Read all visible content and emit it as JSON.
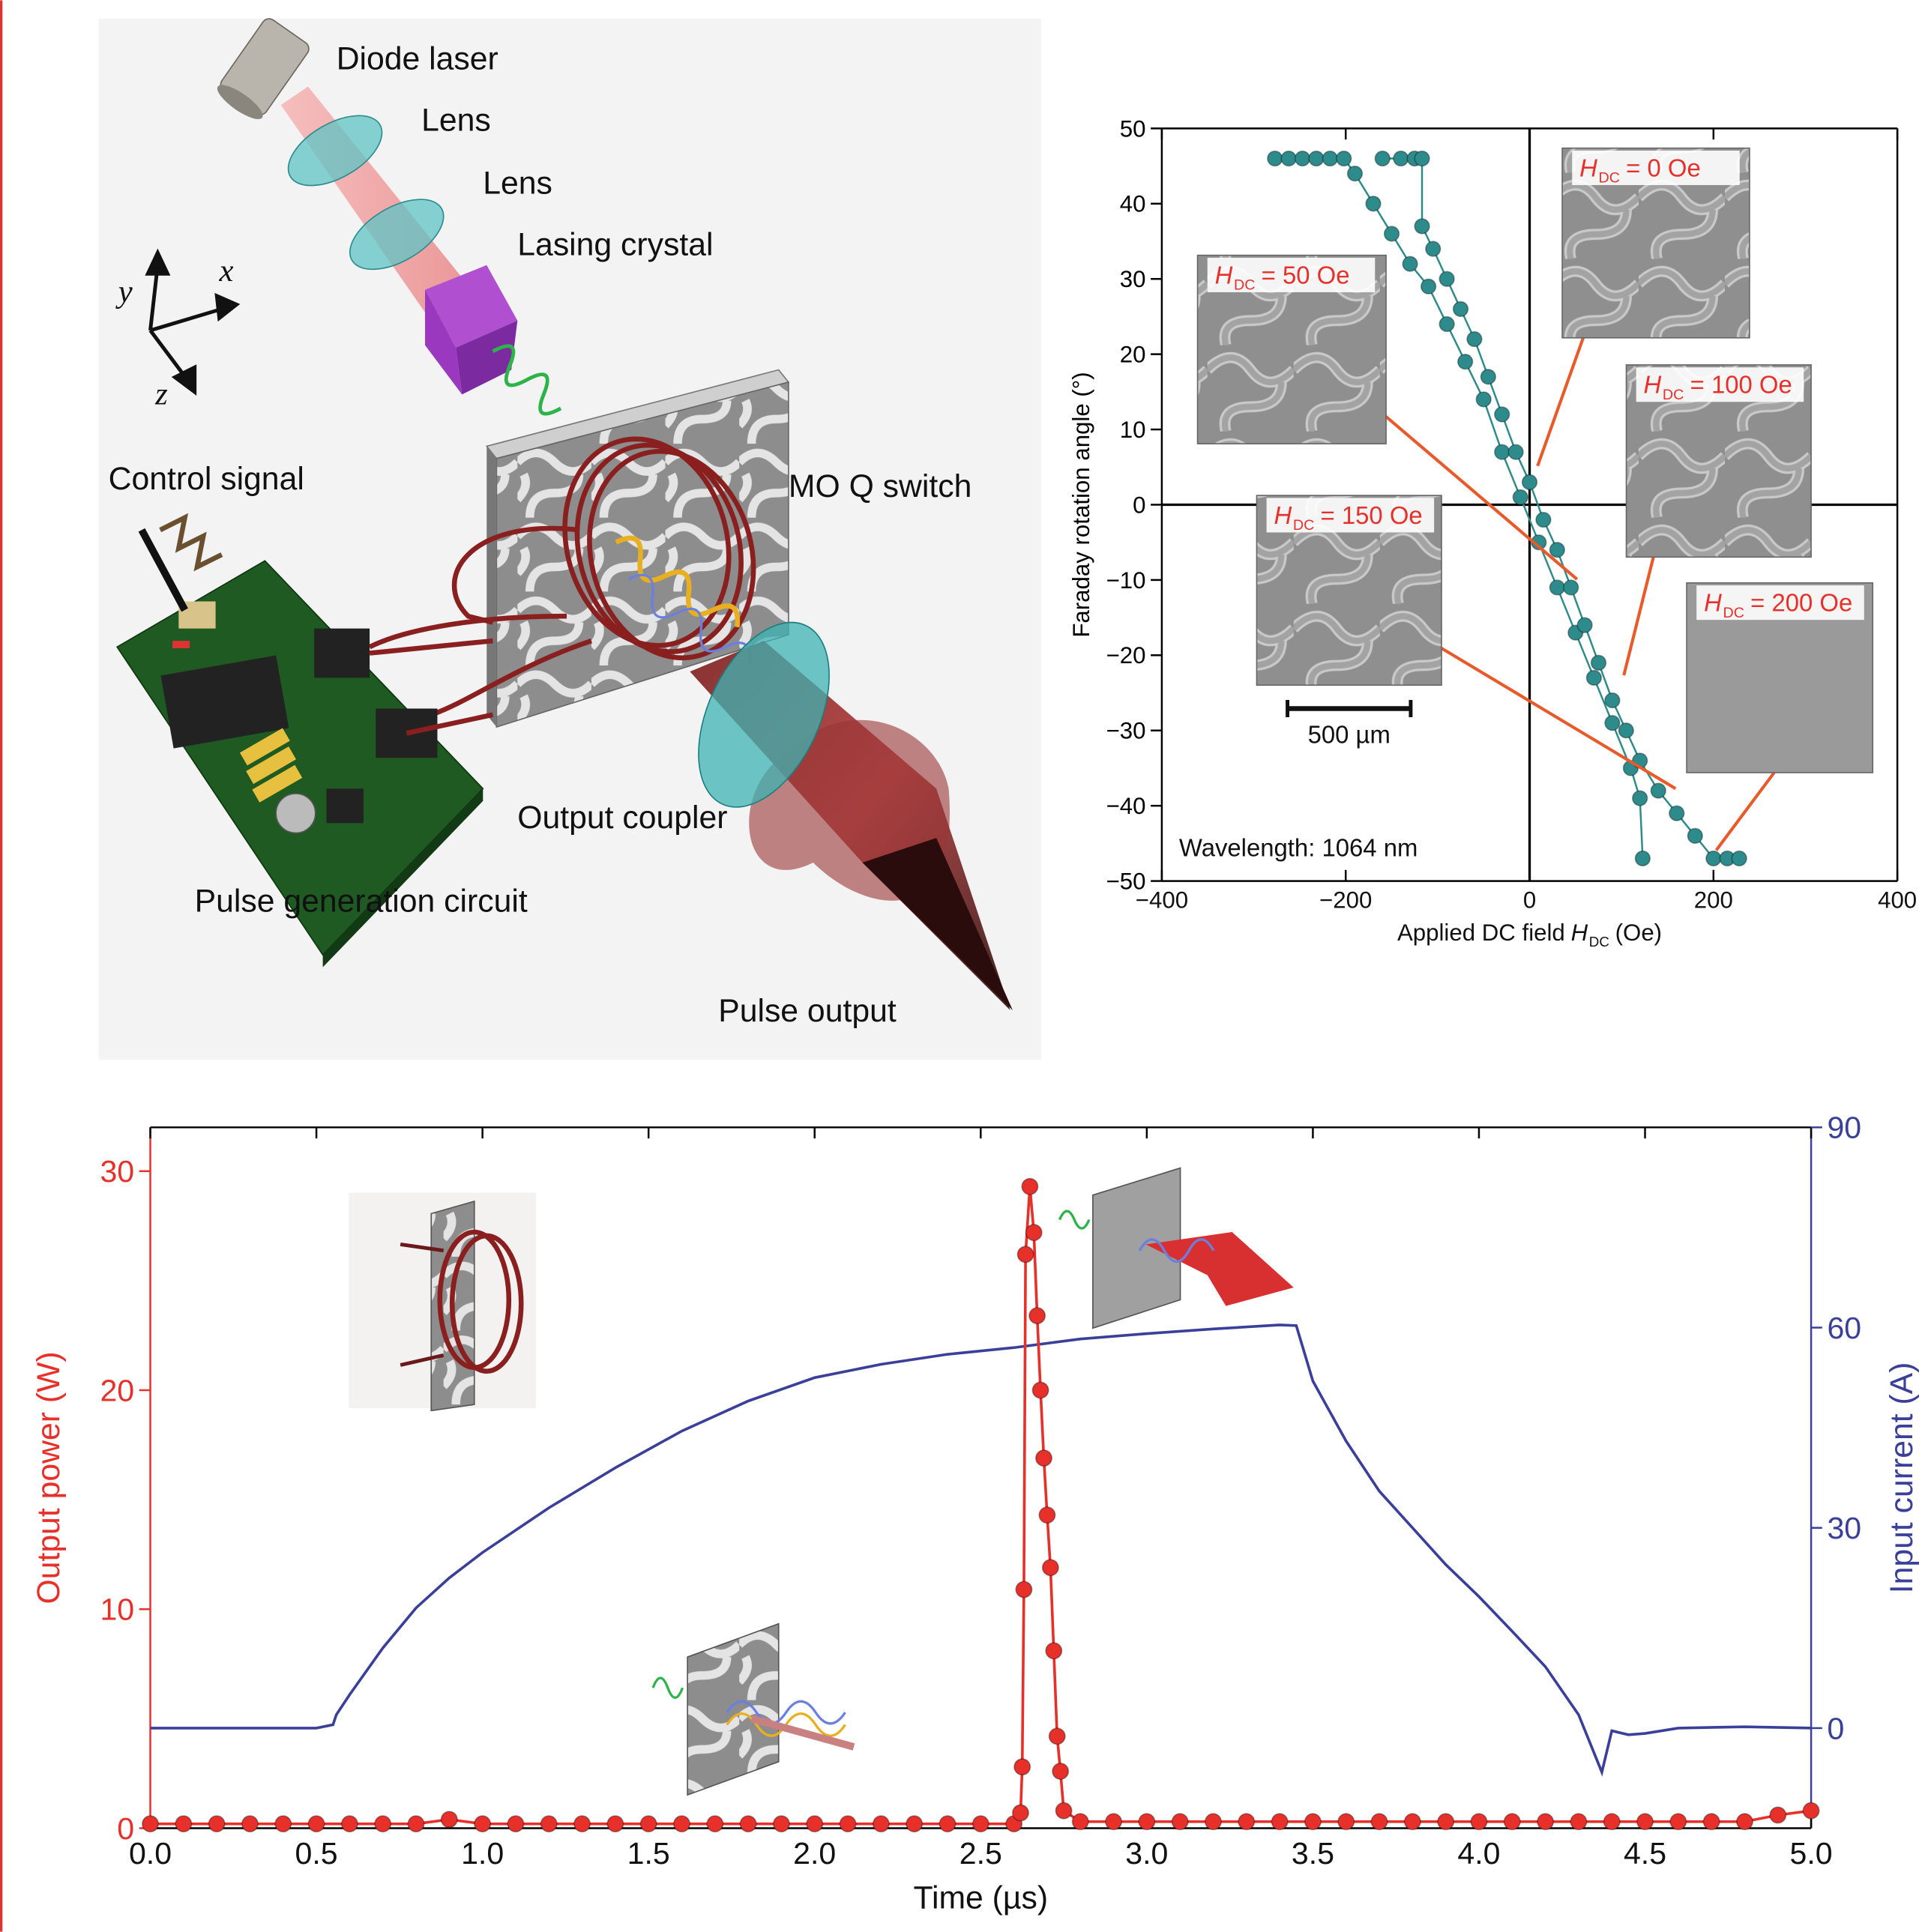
{
  "diagram": {
    "labels": [
      "Diode laser",
      "Lens",
      "Lens",
      "Lasing crystal",
      "Control signal",
      "MO Q switch",
      "Output coupler",
      "Pulse generation circuit",
      "Pulse output"
    ],
    "axes": [
      "x",
      "y",
      "z"
    ]
  },
  "chart_data": [
    {
      "type": "line",
      "y_label": "Faraday rotation angle (°)",
      "x_label": {
        "text": "Applied DC field",
        "var": "H",
        "sub": "DC",
        "unit": "(Oe)"
      },
      "xlim": [
        -400,
        400
      ],
      "xticks": [
        {
          "value": -400,
          "label": "−400"
        },
        {
          "value": -200,
          "label": "−200"
        },
        0,
        200,
        400
      ],
      "ylim": [
        -50,
        50
      ],
      "yticks": [
        {
          "value": -50,
          "label": "−50"
        },
        {
          "value": -40,
          "label": "−40"
        },
        {
          "value": -30,
          "label": "−30"
        },
        {
          "value": -20,
          "label": "−20"
        },
        {
          "value": -10,
          "label": "−10"
        },
        0,
        10,
        20,
        30,
        40,
        50
      ],
      "zero_lines": true,
      "series": [
        {
          "color": "#2e8b8b",
          "marker": "circle",
          "x": [
            -277,
            -262,
            -247,
            -232,
            -217,
            -202,
            -190,
            -170,
            -150,
            -130,
            -110,
            -90,
            -70,
            -50,
            -30,
            -10,
            10,
            30,
            50,
            70,
            90,
            110,
            120,
            123
          ],
          "values": [
            46,
            46,
            46,
            46,
            46,
            46,
            44,
            40,
            36,
            32,
            29,
            24,
            19,
            14,
            7,
            1,
            -5,
            -11,
            -17,
            -23,
            -29,
            -35,
            -39,
            -47
          ]
        },
        {
          "color": "#2e8b8b",
          "marker": "circle",
          "x": [
            -160,
            -140,
            -125,
            -117,
            -117,
            -105,
            -90,
            -75,
            -60,
            -45,
            -30,
            -15,
            0,
            15,
            30,
            45,
            60,
            75,
            90,
            105,
            120,
            140,
            160,
            180,
            200,
            215,
            228
          ],
          "values": [
            46,
            46,
            46,
            46,
            37,
            34,
            30,
            26,
            22,
            17,
            12,
            7,
            3,
            -2,
            -6,
            -11,
            -16,
            -21,
            -26,
            -30,
            -34,
            -38,
            -41,
            -44,
            -47,
            -47,
            -47
          ]
        }
      ],
      "annotations": {
        "wavelength": "Wavelength: 1064 nm",
        "scale_bar": "500 µm",
        "insets": [
          {
            "var": "H",
            "sub": "DC",
            "text": "= 0 Oe"
          },
          {
            "var": "H",
            "sub": "DC",
            "text": "= 50 Oe"
          },
          {
            "var": "H",
            "sub": "DC",
            "text": "= 100 Oe"
          },
          {
            "var": "H",
            "sub": "DC",
            "text": "= 150 Oe"
          },
          {
            "var": "H",
            "sub": "DC",
            "text": "= 200 Oe"
          }
        ]
      }
    },
    {
      "type": "line",
      "x_label": "Time (µs)",
      "y_label": "Output power (W)",
      "y2_label": "Input current (A)",
      "xlim": [
        0,
        5
      ],
      "xticks": [
        {
          "value": 0,
          "label": "0.0"
        },
        0.5,
        {
          "value": 1,
          "label": "1.0"
        },
        1.5,
        {
          "value": 2,
          "label": "2.0"
        },
        2.5,
        {
          "value": 3,
          "label": "3.0"
        },
        3.5,
        {
          "value": 4,
          "label": "4.0"
        },
        4.5,
        {
          "value": 5,
          "label": "5.0"
        }
      ],
      "ylim": [
        0,
        32
      ],
      "yticks": [
        0,
        10,
        20,
        30
      ],
      "y2lim": [
        -15,
        90
      ],
      "y2ticks": [
        0,
        30,
        60,
        90
      ],
      "series": [
        {
          "color": "#3a3f9a",
          "axis": "y2",
          "x": [
            0,
            0.5,
            0.55,
            0.56,
            0.6,
            0.7,
            0.8,
            0.9,
            1.0,
            1.2,
            1.4,
            1.6,
            1.8,
            2.0,
            2.2,
            2.4,
            2.6,
            2.8,
            3.0,
            3.2,
            3.4,
            3.45,
            3.5,
            3.6,
            3.7,
            3.8,
            3.9,
            4.0,
            4.1,
            4.2,
            4.3,
            4.37,
            4.4,
            4.45,
            4.5,
            4.6,
            4.8,
            5.0
          ],
          "values": [
            0,
            0,
            0.5,
            2,
            5,
            12,
            18,
            22.5,
            26.3,
            33,
            39,
            44.5,
            49,
            52.5,
            54.5,
            56,
            57,
            58.3,
            59.1,
            59.8,
            60.4,
            60.3,
            52,
            43,
            35.5,
            30,
            24.5,
            19.7,
            14.5,
            9.2,
            2,
            -6.6,
            -0.4,
            -1,
            -0.8,
            0,
            0.2,
            0
          ]
        },
        {
          "color": "#e8302a",
          "marker": "circle",
          "x": [
            0,
            0.1,
            0.2,
            0.3,
            0.4,
            0.5,
            0.6,
            0.7,
            0.8,
            0.9,
            1.0,
            1.1,
            1.2,
            1.3,
            1.4,
            1.5,
            1.6,
            1.7,
            1.8,
            1.9,
            2.0,
            2.1,
            2.2,
            2.3,
            2.4,
            2.5,
            2.6,
            2.62,
            2.625,
            2.63,
            2.635,
            2.648,
            2.66,
            2.67,
            2.68,
            2.69,
            2.7,
            2.71,
            2.72,
            2.73,
            2.74,
            2.75,
            2.8,
            2.9,
            3.0,
            3.1,
            3.2,
            3.3,
            3.4,
            3.5,
            3.6,
            3.7,
            3.8,
            3.9,
            4.0,
            4.1,
            4.2,
            4.3,
            4.4,
            4.5,
            4.6,
            4.7,
            4.8,
            4.9,
            5.0
          ],
          "values": [
            0.2,
            0.2,
            0.2,
            0.2,
            0.2,
            0.2,
            0.2,
            0.2,
            0.2,
            0.4,
            0.2,
            0.2,
            0.2,
            0.2,
            0.2,
            0.2,
            0.2,
            0.2,
            0.2,
            0.2,
            0.2,
            0.2,
            0.2,
            0.2,
            0.2,
            0.2,
            0.2,
            0.7,
            2.8,
            10.9,
            26.2,
            29.3,
            27.2,
            23.4,
            20.0,
            16.9,
            14.3,
            11.9,
            8.1,
            4.2,
            2.6,
            0.8,
            0.3,
            0.3,
            0.3,
            0.3,
            0.3,
            0.3,
            0.3,
            0.3,
            0.3,
            0.3,
            0.3,
            0.3,
            0.3,
            0.3,
            0.3,
            0.3,
            0.3,
            0.3,
            0.3,
            0.3,
            0.3,
            0.6,
            0.8
          ]
        }
      ]
    }
  ]
}
